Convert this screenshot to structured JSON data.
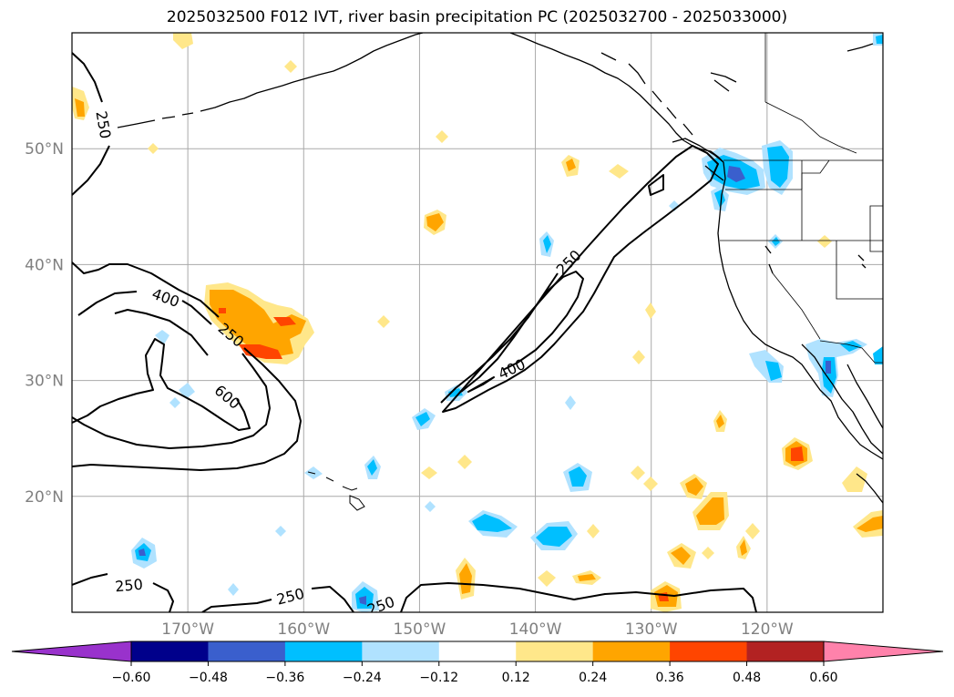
{
  "title": "2025032500 F012 IVT, river basin precipitation PC (2025032700 - 2025033000)",
  "map": {
    "projection": "PlateCarree",
    "lon_range": [
      -180,
      -110
    ],
    "lat_range": [
      10,
      60
    ],
    "gridlines": true,
    "lat_ticks": [
      {
        "value": 20,
        "label": "20°N"
      },
      {
        "value": 30,
        "label": "30°N"
      },
      {
        "value": 40,
        "label": "40°N"
      },
      {
        "value": 50,
        "label": "50°N"
      }
    ],
    "lon_ticks": [
      {
        "value": -170,
        "label": "170°W"
      },
      {
        "value": -160,
        "label": "160°W"
      },
      {
        "value": -150,
        "label": "150°W"
      },
      {
        "value": -140,
        "label": "140°W"
      },
      {
        "value": -130,
        "label": "130°W"
      },
      {
        "value": -120,
        "label": "120°W"
      }
    ],
    "ivt_contour_labels": [
      "250",
      "400",
      "600",
      "250",
      "400",
      "250",
      "250",
      "250",
      "250"
    ]
  },
  "colorbar": {
    "ticks": [
      "−0.60",
      "−0.48",
      "−0.36",
      "−0.24",
      "−0.12",
      "0.12",
      "0.24",
      "0.36",
      "0.48",
      "0.60"
    ],
    "colors": {
      "below": "#9932cc",
      "b1": "#00008b",
      "b2": "#3a5fcd",
      "b3": "#00bfff",
      "b4": "#b0e2ff",
      "neutral": "#ffffff",
      "p1": "#ffe78a",
      "p2": "#ffa500",
      "p3": "#ff4500",
      "p4": "#b22222",
      "above": "#ff82ab"
    }
  }
}
